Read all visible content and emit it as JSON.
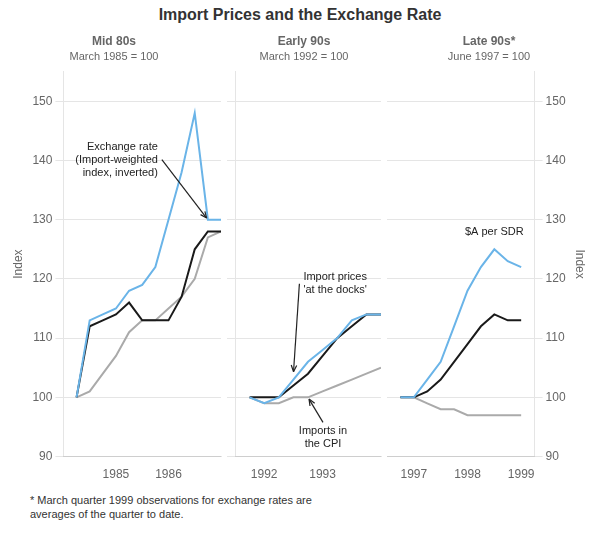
{
  "title": "Import Prices and the Exchange Rate",
  "annotations": [
    {
      "text": "* March quarter 1999 observations for exchange rates are\naverages of the quarter to date."
    }
  ],
  "chart_data": [
    {
      "type": "line",
      "title": "Mid 80s",
      "subtitle": "March 1985 = 100",
      "ylabel": "Index",
      "xlim": [
        1984.0,
        1987.0
      ],
      "xticks": [
        1985,
        1986
      ],
      "ylim": [
        90,
        155
      ],
      "yticks": [
        90,
        100,
        110,
        120,
        130,
        140,
        150
      ],
      "grid": "y",
      "x": [
        1984.25,
        1984.5,
        1984.75,
        1985.0,
        1985.25,
        1985.5,
        1985.75,
        1986.0,
        1986.25,
        1986.5,
        1986.75,
        1987.0
      ],
      "series": [
        {
          "color": "#6ab4e8",
          "values": [
            100,
            113,
            114,
            115,
            118,
            119,
            122,
            130,
            138,
            148,
            130,
            130
          ]
        },
        {
          "color": "#1a1a1a",
          "values": [
            100,
            112,
            113,
            114,
            116,
            113,
            113,
            113,
            117,
            125,
            128,
            128
          ]
        },
        {
          "color": "#aaaaaa",
          "values": [
            100,
            101,
            104,
            107,
            111,
            113,
            113,
            115,
            117,
            120,
            127,
            128
          ]
        }
      ],
      "annotations": [
        {
          "text": "Exchange rate\n(Import-weighted\nindex, inverted)",
          "x": 1986.75,
          "y": 130
        }
      ]
    },
    {
      "type": "line",
      "title": "Early 90s",
      "subtitle": "March 1992 = 100",
      "xlim": [
        1991.5,
        1994.0
      ],
      "xticks": [
        1992,
        1993
      ],
      "ylim": [
        90,
        155
      ],
      "yticks": [
        90,
        100,
        110,
        120,
        130,
        140,
        150
      ],
      "grid": "y",
      "tick_labels": "x",
      "x": [
        1991.75,
        1992.0,
        1992.25,
        1992.5,
        1992.75,
        1993.0,
        1993.25,
        1993.5,
        1993.75,
        1994.0
      ],
      "series": [
        {
          "color": "#6ab4e8",
          "values": [
            100,
            99,
            100,
            103,
            106,
            108,
            110,
            113,
            114,
            114
          ]
        },
        {
          "color": "#1a1a1a",
          "values": [
            100,
            100,
            100,
            102,
            104,
            107,
            110,
            112,
            114,
            114
          ]
        },
        {
          "color": "#aaaaaa",
          "values": [
            100,
            99,
            99,
            100,
            100,
            101,
            102,
            103,
            104,
            105
          ]
        }
      ],
      "annotations": [
        {
          "text": "Import prices\n'at the docks'",
          "x": 1992.5,
          "y": 104
        },
        {
          "text": "Imports in\nthe CPI",
          "x": 1992.75,
          "y": 100
        }
      ]
    },
    {
      "type": "line",
      "title": "Late 90s*",
      "subtitle": "June 1997 = 100",
      "y2label": "Index",
      "xlim": [
        1996.5,
        1999.25
      ],
      "xticks": [
        1997,
        1998,
        1999
      ],
      "y2lim": [
        90,
        155
      ],
      "y2ticks": [
        90,
        100,
        110,
        120,
        130,
        140,
        150
      ],
      "grid": "y",
      "x": [
        1996.75,
        1997.0,
        1997.25,
        1997.5,
        1997.75,
        1998.0,
        1998.25,
        1998.5,
        1998.75,
        1999.0
      ],
      "series": [
        {
          "color": "#6ab4e8",
          "axis": "y2",
          "values": [
            100,
            100,
            103,
            106,
            112,
            118,
            122,
            125,
            123,
            122
          ]
        },
        {
          "color": "#1a1a1a",
          "axis": "y2",
          "values": [
            100,
            100,
            101,
            103,
            106,
            109,
            112,
            114,
            113,
            113
          ]
        },
        {
          "color": "#aaaaaa",
          "axis": "y2",
          "values": [
            100,
            100,
            99,
            98,
            98,
            97,
            97,
            97,
            97,
            97
          ]
        }
      ],
      "annotations": [
        {
          "text": "$A per SDR",
          "x": 1998.5,
          "y": 128
        }
      ]
    }
  ]
}
